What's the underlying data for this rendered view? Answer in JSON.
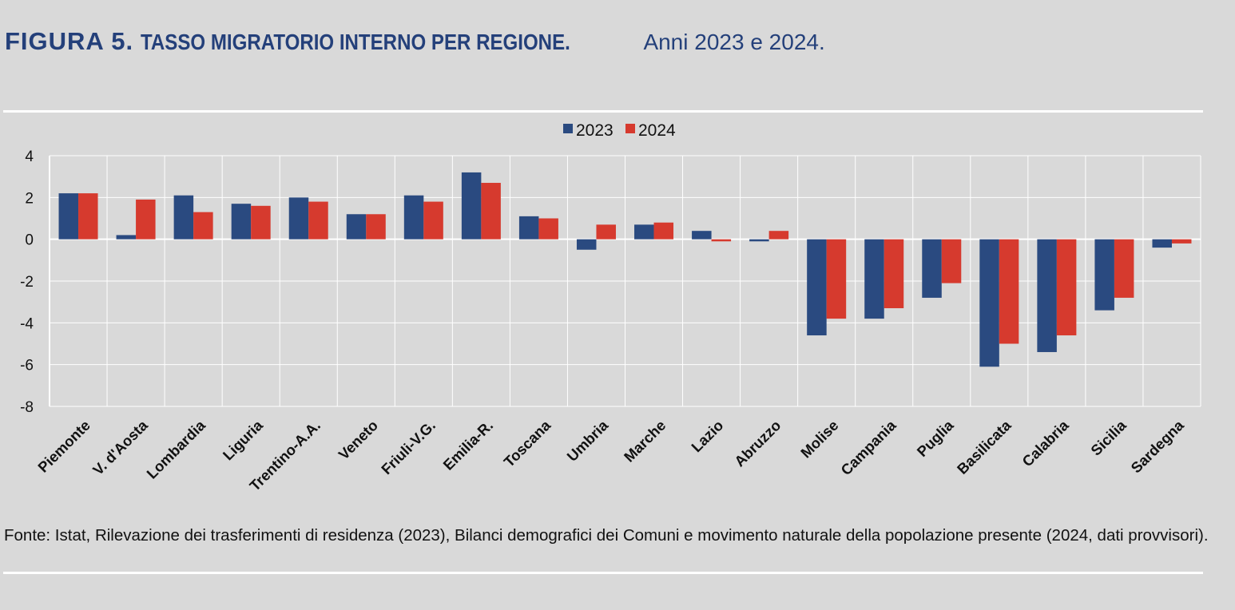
{
  "header": {
    "figure_label": "FIGURA 5.",
    "title": "TASSO MIGRATORIO INTERNO PER REGIONE.",
    "subtitle": "Anni 2023 e 2024."
  },
  "source": "Fonte: Istat, Rilevazione dei trasferimenti di residenza (2023), Bilanci demografici dei Comuni e movimento naturale della popolazione presente (2024, dati provvisori).",
  "colors": {
    "series_2023": "#2a4a80",
    "series_2024": "#d63a2e",
    "background": "#d9d9d9",
    "grid": "#ffffff"
  },
  "chart_data": {
    "type": "bar",
    "title": "",
    "xlabel": "",
    "ylabel": "",
    "ylim": [
      -8,
      4
    ],
    "yticks": [
      "4",
      "2",
      "0",
      "-2",
      "-4",
      "-6",
      "-8"
    ],
    "grid": true,
    "legend_position": "top-center",
    "categories": [
      "Piemonte",
      "V. d'Aosta",
      "Lombardia",
      "Liguria",
      "Trentino-A.A.",
      "Veneto",
      "Friuli-V.G.",
      "Emilia-R.",
      "Toscana",
      "Umbria",
      "Marche",
      "Lazio",
      "Abruzzo",
      "Molise",
      "Campania",
      "Puglia",
      "Basilicata",
      "Calabria",
      "Sicilia",
      "Sardegna"
    ],
    "series": [
      {
        "name": "2023",
        "color": "#2a4a80",
        "values": [
          2.2,
          0.2,
          2.1,
          1.7,
          2.0,
          1.2,
          2.1,
          3.2,
          1.1,
          -0.5,
          0.7,
          0.4,
          -0.1,
          -4.6,
          -3.8,
          -2.8,
          -6.1,
          -5.4,
          -3.4,
          -0.4
        ]
      },
      {
        "name": "2024",
        "color": "#d63a2e",
        "values": [
          2.2,
          1.9,
          1.3,
          1.6,
          1.8,
          1.2,
          1.8,
          2.7,
          1.0,
          0.7,
          0.8,
          -0.1,
          0.4,
          -3.8,
          -3.3,
          -2.1,
          -5.0,
          -4.6,
          -2.8,
          -0.2
        ]
      }
    ]
  }
}
